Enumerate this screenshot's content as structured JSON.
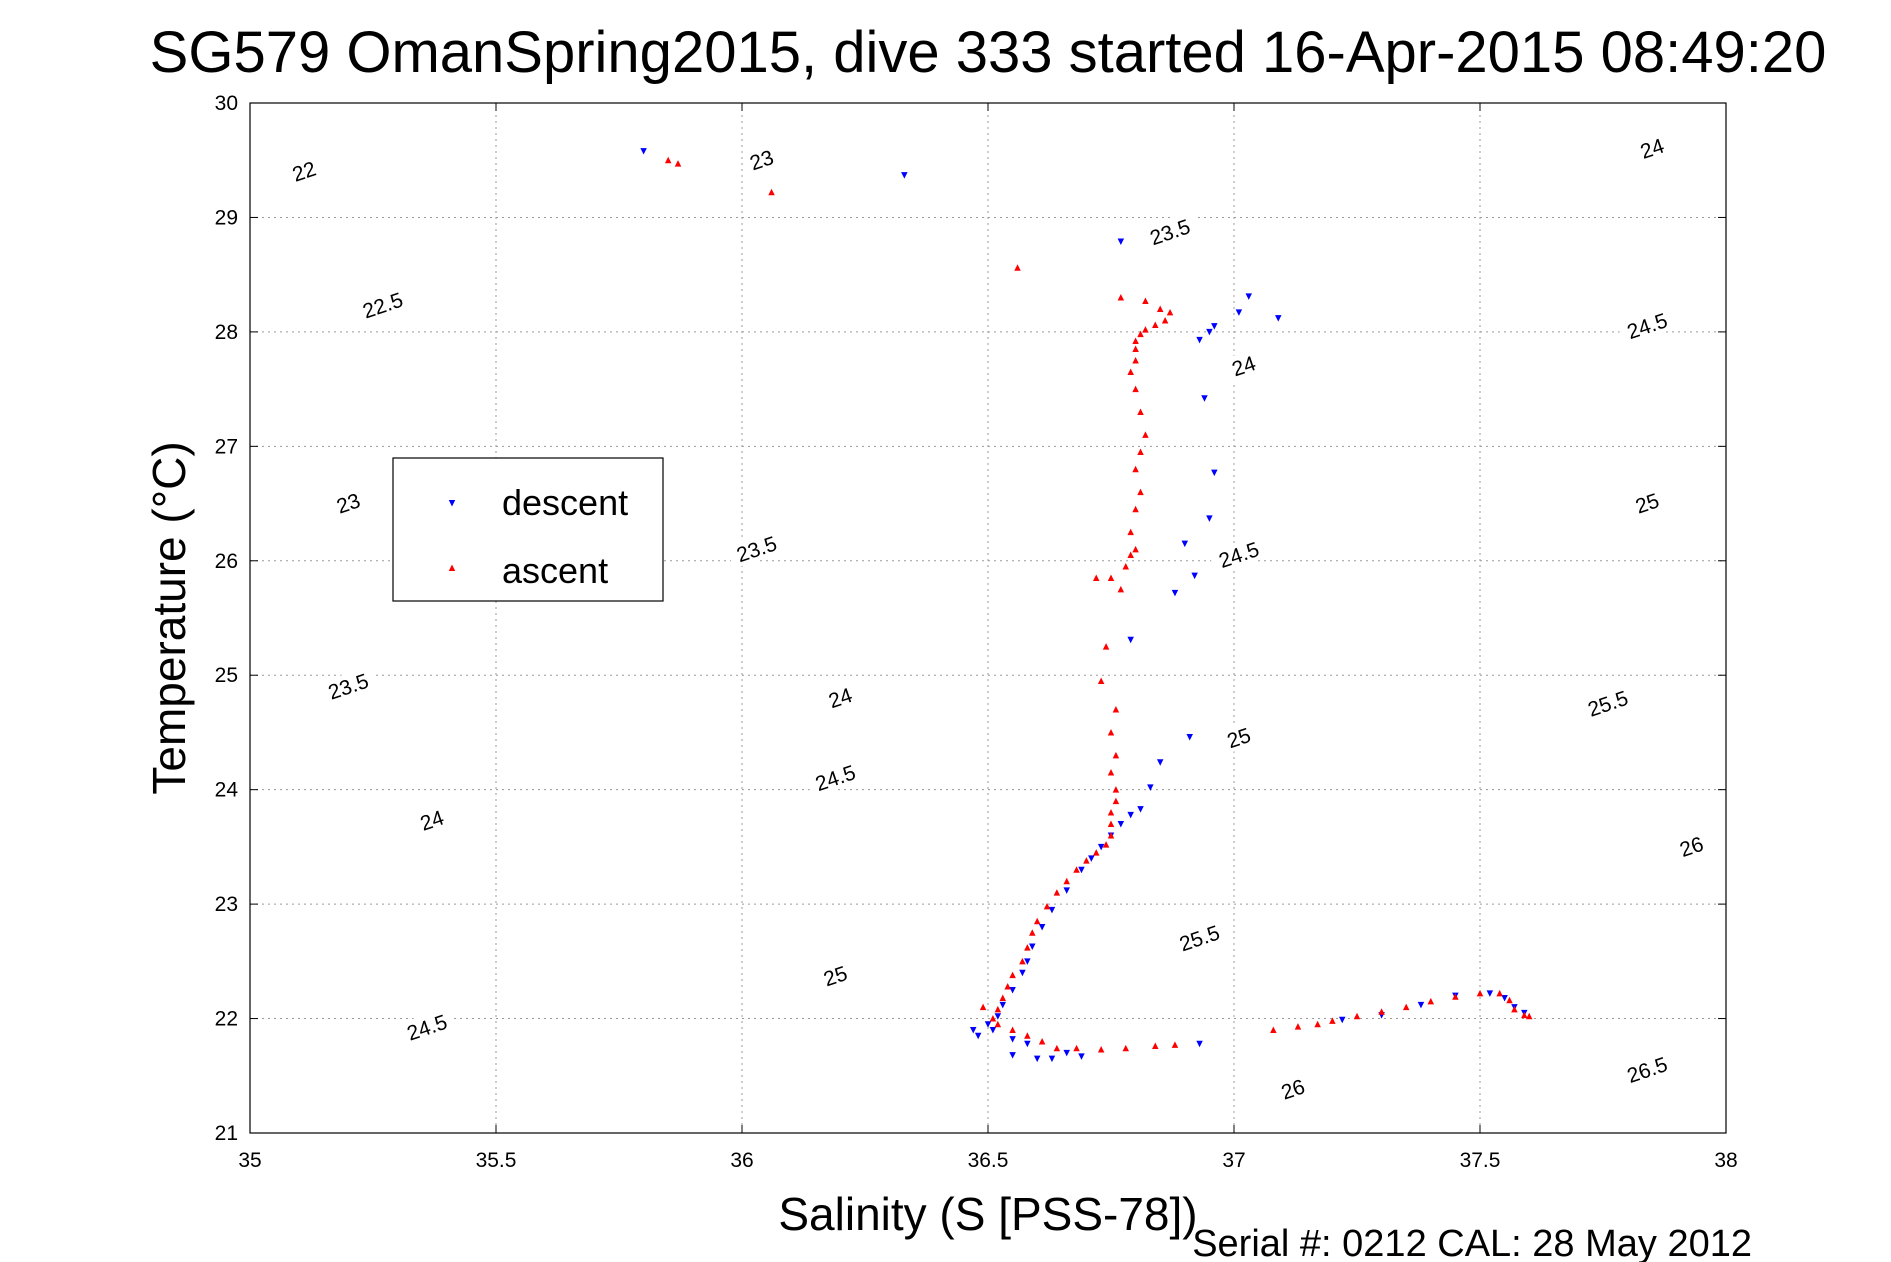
{
  "chart_data": {
    "type": "scatter",
    "title": "SG579 OmanSpring2015, dive 333 started 16-Apr-2015 08:49:20",
    "xlabel": "Salinity (S [PSS-78])",
    "ylabel": "Temperature (°C)",
    "xlim": [
      35,
      38
    ],
    "ylim": [
      21,
      30
    ],
    "x_ticks": [
      "35",
      "35.5",
      "36",
      "36.5",
      "37",
      "37.5",
      "38"
    ],
    "y_ticks": [
      "21",
      "22",
      "23",
      "24",
      "25",
      "26",
      "27",
      "28",
      "29",
      "30"
    ],
    "grid": true,
    "legend_position": "left",
    "contours": {
      "description": "density (sigma-theta) isopycnals",
      "levels": [
        22,
        22.5,
        23,
        23.5,
        24,
        24.5,
        25,
        25.5,
        26,
        26.5
      ],
      "label_positions": [
        {
          "label": "22",
          "x": 35.11,
          "y": 29.4
        },
        {
          "label": "22.5",
          "x": 35.27,
          "y": 28.23
        },
        {
          "label": "23",
          "x": 35.2,
          "y": 26.5
        },
        {
          "label": "23",
          "x": 36.04,
          "y": 29.5
        },
        {
          "label": "23.5",
          "x": 35.2,
          "y": 24.9
        },
        {
          "label": "23.5",
          "x": 36.03,
          "y": 26.1
        },
        {
          "label": "23.5",
          "x": 36.87,
          "y": 28.87
        },
        {
          "label": "24",
          "x": 35.37,
          "y": 23.73
        },
        {
          "label": "24",
          "x": 36.2,
          "y": 24.8
        },
        {
          "label": "24",
          "x": 37.02,
          "y": 27.7
        },
        {
          "label": "24",
          "x": 37.85,
          "y": 29.6
        },
        {
          "label": "24.5",
          "x": 35.36,
          "y": 21.92
        },
        {
          "label": "24.5",
          "x": 36.19,
          "y": 24.1
        },
        {
          "label": "24.5",
          "x": 37.01,
          "y": 26.05
        },
        {
          "label": "24.5",
          "x": 37.84,
          "y": 28.05
        },
        {
          "label": "25",
          "x": 36.19,
          "y": 22.37
        },
        {
          "label": "25",
          "x": 37.01,
          "y": 24.45
        },
        {
          "label": "25",
          "x": 37.84,
          "y": 26.5
        },
        {
          "label": "25.5",
          "x": 36.93,
          "y": 22.7
        },
        {
          "label": "25.5",
          "x": 37.76,
          "y": 24.75
        },
        {
          "label": "26",
          "x": 37.12,
          "y": 21.38
        },
        {
          "label": "26",
          "x": 37.93,
          "y": 23.5
        },
        {
          "label": "26.5",
          "x": 37.84,
          "y": 21.55
        }
      ]
    },
    "series": [
      {
        "name": "descent",
        "color": "#0000ff",
        "marker": "triangle-down",
        "points": [
          [
            35.8,
            29.58
          ],
          [
            36.33,
            29.37
          ],
          [
            36.77,
            28.79
          ],
          [
            37.03,
            28.31
          ],
          [
            37.01,
            28.17
          ],
          [
            37.09,
            28.12
          ],
          [
            36.96,
            28.05
          ],
          [
            36.95,
            28.0
          ],
          [
            36.93,
            27.93
          ],
          [
            36.94,
            27.42
          ],
          [
            36.96,
            26.77
          ],
          [
            36.95,
            26.37
          ],
          [
            36.9,
            26.15
          ],
          [
            36.92,
            25.87
          ],
          [
            36.88,
            25.72
          ],
          [
            36.79,
            25.31
          ],
          [
            36.91,
            24.46
          ],
          [
            36.85,
            24.24
          ],
          [
            36.83,
            24.02
          ],
          [
            36.81,
            23.83
          ],
          [
            36.79,
            23.78
          ],
          [
            36.77,
            23.7
          ],
          [
            36.75,
            23.6
          ],
          [
            36.73,
            23.5
          ],
          [
            36.71,
            23.4
          ],
          [
            36.69,
            23.3
          ],
          [
            36.66,
            23.12
          ],
          [
            36.63,
            22.95
          ],
          [
            36.61,
            22.8
          ],
          [
            36.59,
            22.63
          ],
          [
            36.58,
            22.5
          ],
          [
            36.57,
            22.4
          ],
          [
            36.55,
            22.25
          ],
          [
            36.53,
            22.12
          ],
          [
            36.52,
            22.02
          ],
          [
            36.5,
            21.95
          ],
          [
            36.47,
            21.9
          ],
          [
            36.48,
            21.85
          ],
          [
            36.51,
            21.9
          ],
          [
            36.55,
            21.82
          ],
          [
            36.58,
            21.78
          ],
          [
            36.55,
            21.68
          ],
          [
            36.6,
            21.65
          ],
          [
            36.63,
            21.65
          ],
          [
            36.66,
            21.7
          ],
          [
            36.69,
            21.67
          ],
          [
            36.93,
            21.78
          ],
          [
            37.22,
            21.99
          ],
          [
            37.3,
            22.03
          ],
          [
            37.38,
            22.12
          ],
          [
            37.45,
            22.2
          ],
          [
            37.52,
            22.22
          ],
          [
            37.55,
            22.18
          ],
          [
            37.57,
            22.1
          ],
          [
            37.59,
            22.05
          ]
        ]
      },
      {
        "name": "ascent",
        "color": "#ff0000",
        "marker": "triangle-up",
        "points": [
          [
            35.85,
            29.5
          ],
          [
            35.87,
            29.47
          ],
          [
            36.06,
            29.22
          ],
          [
            36.56,
            28.56
          ],
          [
            36.77,
            28.3
          ],
          [
            36.82,
            28.27
          ],
          [
            36.85,
            28.2
          ],
          [
            36.87,
            28.17
          ],
          [
            36.86,
            28.1
          ],
          [
            36.84,
            28.06
          ],
          [
            36.82,
            28.02
          ],
          [
            36.81,
            27.98
          ],
          [
            36.8,
            27.92
          ],
          [
            36.8,
            27.85
          ],
          [
            36.8,
            27.75
          ],
          [
            36.79,
            27.65
          ],
          [
            36.8,
            27.5
          ],
          [
            36.81,
            27.3
          ],
          [
            36.82,
            27.1
          ],
          [
            36.81,
            26.95
          ],
          [
            36.8,
            26.8
          ],
          [
            36.81,
            26.6
          ],
          [
            36.8,
            26.45
          ],
          [
            36.79,
            26.25
          ],
          [
            36.8,
            26.1
          ],
          [
            36.79,
            26.05
          ],
          [
            36.78,
            25.95
          ],
          [
            36.75,
            25.85
          ],
          [
            36.72,
            25.85
          ],
          [
            36.77,
            25.75
          ],
          [
            36.74,
            25.25
          ],
          [
            36.73,
            24.95
          ],
          [
            36.76,
            24.7
          ],
          [
            36.75,
            24.5
          ],
          [
            36.76,
            24.3
          ],
          [
            36.75,
            24.15
          ],
          [
            36.76,
            24.0
          ],
          [
            36.76,
            23.9
          ],
          [
            36.75,
            23.8
          ],
          [
            36.75,
            23.7
          ],
          [
            36.75,
            23.6
          ],
          [
            36.74,
            23.52
          ],
          [
            36.72,
            23.45
          ],
          [
            36.7,
            23.38
          ],
          [
            36.68,
            23.3
          ],
          [
            36.66,
            23.2
          ],
          [
            36.64,
            23.1
          ],
          [
            36.62,
            22.98
          ],
          [
            36.6,
            22.85
          ],
          [
            36.59,
            22.75
          ],
          [
            36.58,
            22.62
          ],
          [
            36.57,
            22.5
          ],
          [
            36.55,
            22.38
          ],
          [
            36.54,
            22.28
          ],
          [
            36.53,
            22.18
          ],
          [
            36.52,
            22.08
          ],
          [
            36.51,
            22.0
          ],
          [
            36.49,
            22.1
          ],
          [
            36.52,
            21.95
          ],
          [
            36.55,
            21.9
          ],
          [
            36.58,
            21.85
          ],
          [
            36.61,
            21.8
          ],
          [
            36.64,
            21.74
          ],
          [
            36.68,
            21.74
          ],
          [
            36.73,
            21.73
          ],
          [
            36.78,
            21.74
          ],
          [
            36.84,
            21.76
          ],
          [
            36.88,
            21.77
          ],
          [
            37.08,
            21.9
          ],
          [
            37.13,
            21.93
          ],
          [
            37.17,
            21.95
          ],
          [
            37.2,
            21.98
          ],
          [
            37.25,
            22.02
          ],
          [
            37.3,
            22.06
          ],
          [
            37.35,
            22.1
          ],
          [
            37.4,
            22.15
          ],
          [
            37.45,
            22.19
          ],
          [
            37.5,
            22.22
          ],
          [
            37.54,
            22.22
          ],
          [
            37.56,
            22.16
          ],
          [
            37.57,
            22.08
          ],
          [
            37.59,
            22.03
          ],
          [
            37.6,
            22.02
          ]
        ]
      }
    ]
  },
  "footer": {
    "serial_text": "Serial #: 0212  CAL: 28 May 2012"
  }
}
